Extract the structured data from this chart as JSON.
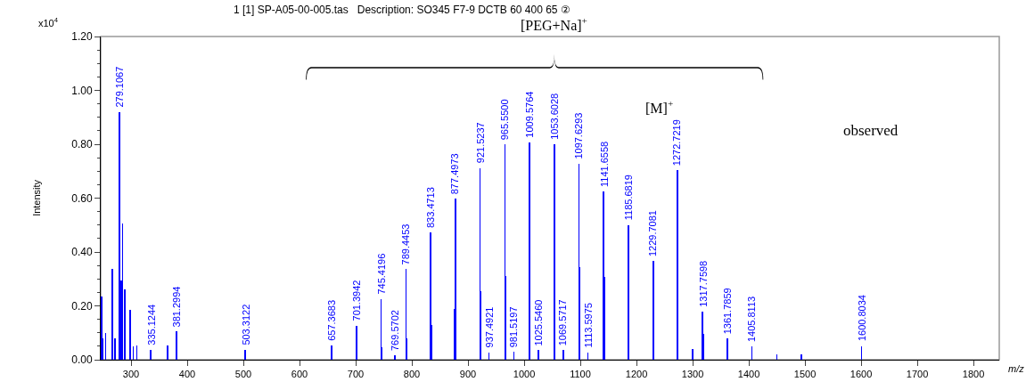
{
  "chart_data": {
    "type": "bar",
    "title": "1 [1] SP-A05-00-005.tas   Description: SO345 F7-9 DCTB 60 400 65 ②",
    "xlabel": "m/z",
    "ylabel": "Intensity",
    "x": [
      247.5,
      250,
      255,
      266.6,
      271.4,
      279.1067,
      282.5,
      284.6,
      288.9,
      298.4,
      303.7,
      310,
      335.1244,
      364.7,
      381.2994,
      503.3122,
      657.3683,
      701.3942,
      745.4196,
      746.4,
      769.5702,
      789.4453,
      790.5,
      833.4713,
      834.5,
      875.5,
      877.4973,
      921.5237,
      922.5,
      937.4921,
      965.55,
      966.5,
      981.5197,
      1009.5764,
      1025.546,
      1053.6028,
      1069.5717,
      1097.6293,
      1098.6,
      1113.5975,
      1141.6558,
      1142.7,
      1185.6819,
      1229.7081,
      1272.7219,
      1300,
      1317.7598,
      1318.8,
      1361.7859,
      1405.8113,
      1450,
      1494,
      1600.8034
    ],
    "values": [
      0.236,
      0.08,
      0.1,
      0.336,
      0.08,
      0.92,
      0.293,
      0.505,
      0.26,
      0.186,
      0.05,
      0.053,
      0.038,
      0.053,
      0.105,
      0.038,
      0.054,
      0.127,
      0.225,
      0.045,
      0.016,
      0.337,
      0.08,
      0.473,
      0.13,
      0.187,
      0.597,
      0.712,
      0.255,
      0.027,
      0.8,
      0.312,
      0.03,
      0.808,
      0.035,
      0.8,
      0.035,
      0.727,
      0.345,
      0.027,
      0.624,
      0.307,
      0.5,
      0.366,
      0.703,
      0.04,
      0.18,
      0.095,
      0.078,
      0.05,
      0.02,
      0.02,
      0.051
    ],
    "color": "#0000ff",
    "xlim": [
      246,
      1846
    ],
    "xticks": [
      300,
      400,
      500,
      600,
      700,
      800,
      900,
      1000,
      1100,
      1200,
      1300,
      1400,
      1500,
      1600,
      1700,
      1800
    ],
    "ylim": [
      0,
      1.2
    ],
    "yticks": [
      {
        "value": 0,
        "label": "0.00"
      },
      {
        "value": 0.2,
        "label": "0.20"
      },
      {
        "value": 0.4,
        "label": "0.40"
      },
      {
        "value": 0.6,
        "label": "0.60"
      },
      {
        "value": 0.8,
        "label": "0.80"
      },
      {
        "value": 1.0,
        "label": "1.00"
      },
      {
        "value": 1.2,
        "label": "1.20"
      }
    ],
    "grid": false,
    "legend": false,
    "annotations": [
      "[PEG+Na]$^{+}$",
      "[M]$^{+}$",
      "observed",
      "x10$^{4}$",
      {
        "text": "279.1067",
        "x": 279.1067,
        "y": 0.92
      },
      {
        "text": "335.1244",
        "x": 335.1244,
        "y": 0.038
      },
      {
        "text": "381.2994",
        "x": 381.2994,
        "y": 0.105
      },
      {
        "text": "503.3122",
        "x": 503.3122,
        "y": 0.038
      },
      {
        "text": "657.3683",
        "x": 657.3683,
        "y": 0.054
      },
      {
        "text": "701.3942",
        "x": 701.3942,
        "y": 0.127
      },
      {
        "text": "745.4196",
        "x": 745.4196,
        "y": 0.225
      },
      {
        "text": "769.5702",
        "x": 769.5702,
        "y": 0.016
      },
      {
        "text": "789.4453",
        "x": 789.4453,
        "y": 0.337
      },
      {
        "text": "833.4713",
        "x": 833.4713,
        "y": 0.473
      },
      {
        "text": "877.4973",
        "x": 877.4973,
        "y": 0.597
      },
      {
        "text": "921.5237",
        "x": 921.5237,
        "y": 0.712
      },
      {
        "text": "937.4921",
        "x": 937.4921,
        "y": 0.027
      },
      {
        "text": "965.5500",
        "x": 965.55,
        "y": 0.8
      },
      {
        "text": "981.5197",
        "x": 981.5197,
        "y": 0.03
      },
      {
        "text": "1009.5764",
        "x": 1009.5764,
        "y": 0.808
      },
      {
        "text": "1025.5460",
        "x": 1025.546,
        "y": 0.035
      },
      {
        "text": "1053.6028",
        "x": 1053.6028,
        "y": 0.8
      },
      {
        "text": "1069.5717",
        "x": 1069.5717,
        "y": 0.035
      },
      {
        "text": "1097.6293",
        "x": 1097.6293,
        "y": 0.727
      },
      {
        "text": "1113.5975",
        "x": 1113.5975,
        "y": 0.027
      },
      {
        "text": "1141.6558",
        "x": 1141.6558,
        "y": 0.624
      },
      {
        "text": "1185.6819",
        "x": 1185.6819,
        "y": 0.5
      },
      {
        "text": "1229.7081",
        "x": 1229.7081,
        "y": 0.366
      },
      {
        "text": "1272.7219",
        "x": 1272.7219,
        "y": 0.703
      },
      {
        "text": "1317.7598",
        "x": 1317.7598,
        "y": 0.18
      },
      {
        "text": "1361.7859",
        "x": 1361.7859,
        "y": 0.078
      },
      {
        "text": "1405.8113",
        "x": 1405.8113,
        "y": 0.05
      },
      {
        "text": "1600.8034",
        "x": 1600.8034,
        "y": 0.051
      }
    ]
  }
}
